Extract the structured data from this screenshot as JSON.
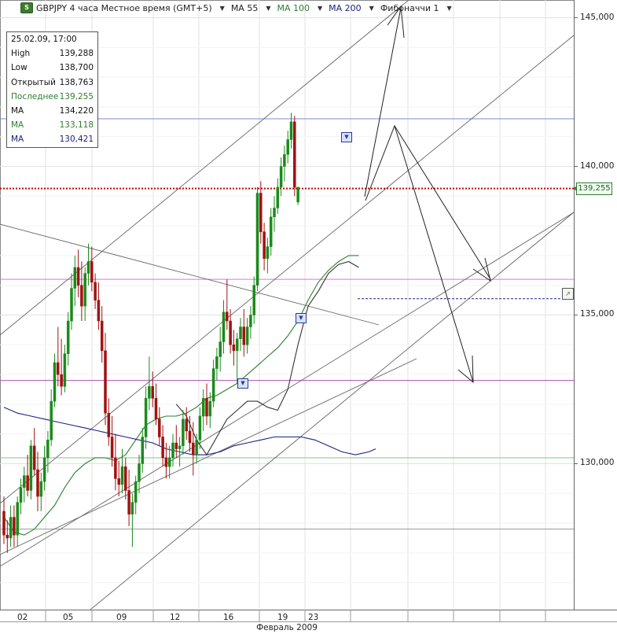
{
  "header": {
    "symbol_title": "GBPJPY 4 часа Местное время (GMT+5)",
    "items": [
      {
        "label": "MA 55",
        "color": "#222222"
      },
      {
        "label": "MA 100",
        "color": "#2e7d32"
      },
      {
        "label": "MA 200",
        "color": "#1a237e"
      },
      {
        "label": "Фибоначчи 1",
        "color": "#222222"
      }
    ],
    "logo_text": "S"
  },
  "info_panel": {
    "datetime": "25.02.09, 17:00",
    "rows": [
      {
        "label": "High",
        "value": "139,288",
        "color": "#111111"
      },
      {
        "label": "Low",
        "value": "138,700",
        "color": "#111111"
      },
      {
        "label": "Открытый",
        "value": "138,763",
        "color": "#111111"
      },
      {
        "label": "Последнее",
        "value": "139,255",
        "color": "#2e7d32"
      },
      {
        "label": "MA",
        "value": "134,220",
        "color": "#111111"
      },
      {
        "label": "MA",
        "value": "133,118",
        "color": "#2e7d32"
      },
      {
        "label": "MA",
        "value": "130,421",
        "color": "#1a237e"
      }
    ]
  },
  "price_tag": "139,255",
  "chart_data": {
    "type": "candlestick",
    "title": "GBPJPY 4 часа",
    "x_axis": {
      "tick_labels": [
        "02",
        "05",
        "09",
        "12",
        "16",
        "19",
        "23"
      ],
      "month_label": "Февраль 2009"
    },
    "y_axis": {
      "tick_labels": [
        "145,000",
        "140,000",
        "135,000",
        "130,000"
      ],
      "ticks": [
        145,
        140,
        135,
        130
      ],
      "ylim": [
        125.3,
        145.6
      ]
    },
    "candles": [
      [
        128.4,
        128.9,
        127.3,
        127.6
      ],
      [
        127.6,
        128.1,
        127.0,
        127.5
      ],
      [
        127.5,
        128.6,
        127.2,
        128.2
      ],
      [
        128.2,
        128.6,
        127.2,
        127.6
      ],
      [
        127.6,
        128.9,
        127.2,
        128.7
      ],
      [
        128.7,
        129.5,
        128.3,
        129.2
      ],
      [
        129.2,
        129.9,
        128.7,
        129.6
      ],
      [
        129.6,
        130.3,
        128.9,
        129.1
      ],
      [
        129.1,
        130.8,
        128.8,
        130.6
      ],
      [
        130.6,
        131.2,
        129.6,
        129.8
      ],
      [
        129.8,
        130.4,
        128.4,
        128.9
      ],
      [
        128.9,
        129.7,
        128.4,
        129.4
      ],
      [
        129.4,
        130.6,
        129.1,
        130.2
      ],
      [
        130.2,
        131.1,
        129.7,
        130.8
      ],
      [
        130.8,
        132.5,
        130.6,
        132.1
      ],
      [
        132.1,
        133.7,
        131.9,
        133.4
      ],
      [
        133.4,
        134.6,
        132.6,
        133.0
      ],
      [
        133.0,
        134.2,
        132.3,
        132.6
      ],
      [
        132.6,
        134.0,
        132.4,
        133.7
      ],
      [
        133.7,
        135.1,
        133.3,
        134.8
      ],
      [
        134.8,
        136.4,
        134.5,
        135.9
      ],
      [
        135.9,
        137.0,
        135.3,
        136.6
      ],
      [
        136.6,
        137.2,
        135.6,
        136.0
      ],
      [
        136.0,
        136.8,
        134.8,
        135.3
      ],
      [
        135.3,
        136.6,
        134.8,
        136.4
      ],
      [
        136.4,
        137.4,
        136.0,
        136.8
      ],
      [
        136.8,
        137.3,
        135.8,
        136.1
      ],
      [
        136.1,
        136.4,
        135.2,
        135.5
      ],
      [
        135.5,
        136.1,
        134.5,
        134.8
      ],
      [
        134.8,
        135.3,
        133.4,
        133.8
      ],
      [
        133.8,
        134.4,
        131.3,
        131.7
      ],
      [
        131.7,
        132.2,
        130.6,
        130.9
      ],
      [
        130.9,
        131.6,
        129.9,
        130.2
      ],
      [
        130.2,
        131.0,
        129.1,
        129.5
      ],
      [
        129.5,
        130.1,
        128.9,
        129.3
      ],
      [
        129.3,
        130.5,
        129.0,
        129.9
      ],
      [
        129.9,
        130.2,
        128.8,
        129.1
      ],
      [
        129.1,
        129.8,
        127.9,
        128.3
      ],
      [
        128.3,
        129.0,
        127.2,
        128.7
      ],
      [
        128.7,
        129.6,
        128.3,
        129.4
      ],
      [
        129.4,
        130.3,
        129.0,
        130.0
      ],
      [
        130.0,
        131.2,
        129.7,
        130.9
      ],
      [
        130.9,
        132.6,
        130.5,
        132.2
      ],
      [
        132.2,
        133.6,
        131.8,
        132.6
      ],
      [
        132.6,
        133.1,
        131.9,
        132.2
      ],
      [
        132.2,
        132.7,
        131.3,
        131.5
      ],
      [
        131.5,
        131.9,
        130.6,
        130.9
      ],
      [
        130.9,
        131.3,
        129.9,
        130.2
      ],
      [
        130.2,
        130.7,
        129.5,
        129.9
      ],
      [
        129.9,
        130.6,
        129.5,
        130.2
      ],
      [
        130.2,
        131.0,
        129.9,
        130.7
      ],
      [
        130.7,
        131.3,
        130.2,
        130.5
      ],
      [
        130.5,
        130.9,
        129.9,
        130.6
      ],
      [
        130.6,
        131.8,
        130.3,
        131.5
      ],
      [
        131.5,
        131.9,
        130.8,
        131.1
      ],
      [
        131.1,
        131.6,
        130.4,
        130.7
      ],
      [
        130.7,
        131.4,
        129.6,
        130.3
      ],
      [
        130.3,
        131.0,
        130.0,
        130.8
      ],
      [
        130.8,
        131.9,
        130.5,
        131.6
      ],
      [
        131.6,
        132.5,
        131.1,
        132.2
      ],
      [
        132.2,
        132.7,
        131.3,
        131.6
      ],
      [
        131.6,
        132.4,
        131.2,
        132.1
      ],
      [
        132.1,
        133.5,
        131.9,
        133.2
      ],
      [
        133.2,
        133.9,
        132.8,
        133.6
      ],
      [
        133.6,
        134.6,
        133.1,
        134.1
      ],
      [
        134.1,
        135.5,
        133.7,
        135.1
      ],
      [
        135.1,
        136.2,
        134.5,
        134.8
      ],
      [
        134.8,
        135.2,
        133.7,
        134.0
      ],
      [
        134.0,
        134.5,
        133.3,
        133.8
      ],
      [
        133.8,
        134.4,
        132.7,
        134.2
      ],
      [
        134.2,
        134.9,
        133.8,
        134.6
      ],
      [
        134.6,
        135.2,
        133.6,
        134.0
      ],
      [
        134.0,
        134.9,
        133.7,
        134.6
      ],
      [
        134.6,
        135.3,
        134.2,
        135.0
      ],
      [
        135.0,
        136.3,
        134.7,
        136.0
      ],
      [
        136.0,
        139.3,
        135.8,
        139.1
      ],
      [
        139.1,
        139.5,
        137.4,
        137.8
      ],
      [
        137.8,
        138.1,
        136.5,
        136.9
      ],
      [
        136.9,
        137.6,
        136.4,
        137.3
      ],
      [
        137.3,
        138.6,
        137.0,
        138.3
      ],
      [
        138.3,
        139.0,
        137.8,
        138.6
      ],
      [
        138.6,
        139.6,
        138.4,
        139.3
      ],
      [
        139.3,
        140.3,
        139.0,
        140.0
      ],
      [
        140.0,
        140.7,
        139.5,
        140.4
      ],
      [
        140.4,
        141.2,
        140.1,
        140.9
      ],
      [
        140.9,
        141.8,
        140.6,
        141.5
      ],
      [
        141.5,
        141.7,
        139.0,
        139.3
      ],
      [
        138.8,
        139.3,
        138.7,
        139.3
      ]
    ],
    "ma55": [
      [
        51,
        132.0
      ],
      [
        54,
        131.6
      ],
      [
        57,
        130.8
      ],
      [
        60,
        130.3
      ],
      [
        63,
        130.9
      ],
      [
        66,
        131.5
      ],
      [
        69,
        131.8
      ],
      [
        72,
        132.1
      ],
      [
        75,
        132.1
      ],
      [
        78,
        131.9
      ],
      [
        81,
        131.8
      ],
      [
        84,
        132.5
      ],
      [
        87,
        134.0
      ],
      [
        90,
        135.3
      ],
      [
        93,
        135.8
      ],
      [
        96,
        136.4
      ],
      [
        99,
        136.7
      ],
      [
        102,
        136.8
      ],
      [
        105,
        136.6
      ]
    ],
    "ma100": [
      [
        0,
        128.2
      ],
      [
        3,
        127.7
      ],
      [
        6,
        127.6
      ],
      [
        9,
        127.8
      ],
      [
        12,
        128.2
      ],
      [
        15,
        128.6
      ],
      [
        18,
        129.2
      ],
      [
        21,
        129.7
      ],
      [
        24,
        130.0
      ],
      [
        27,
        130.2
      ],
      [
        30,
        130.2
      ],
      [
        33,
        130.1
      ],
      [
        36,
        130.3
      ],
      [
        39,
        130.8
      ],
      [
        42,
        131.3
      ],
      [
        45,
        131.5
      ],
      [
        48,
        131.6
      ],
      [
        51,
        131.6
      ],
      [
        54,
        131.7
      ],
      [
        57,
        131.9
      ],
      [
        60,
        132.2
      ],
      [
        63,
        132.3
      ],
      [
        66,
        132.5
      ],
      [
        69,
        132.7
      ],
      [
        72,
        133.0
      ],
      [
        75,
        133.3
      ],
      [
        78,
        133.6
      ],
      [
        81,
        133.9
      ],
      [
        84,
        134.3
      ],
      [
        87,
        134.8
      ],
      [
        90,
        135.5
      ],
      [
        93,
        136.1
      ],
      [
        96,
        136.5
      ],
      [
        99,
        136.8
      ],
      [
        102,
        137.0
      ],
      [
        105,
        137.0
      ]
    ],
    "ma200": [
      [
        0,
        131.9
      ],
      [
        4,
        131.7
      ],
      [
        8,
        131.6
      ],
      [
        12,
        131.5
      ],
      [
        16,
        131.4
      ],
      [
        20,
        131.3
      ],
      [
        24,
        131.2
      ],
      [
        28,
        131.1
      ],
      [
        32,
        131.0
      ],
      [
        36,
        130.9
      ],
      [
        40,
        130.8
      ],
      [
        44,
        130.7
      ],
      [
        48,
        130.5
      ],
      [
        52,
        130.4
      ],
      [
        56,
        130.3
      ],
      [
        60,
        130.3
      ],
      [
        64,
        130.4
      ],
      [
        68,
        130.6
      ],
      [
        72,
        130.7
      ],
      [
        76,
        130.8
      ],
      [
        80,
        130.9
      ],
      [
        84,
        130.9
      ],
      [
        88,
        130.9
      ],
      [
        92,
        130.8
      ],
      [
        96,
        130.6
      ],
      [
        100,
        130.4
      ],
      [
        104,
        130.3
      ],
      [
        108,
        130.4
      ],
      [
        110,
        130.5
      ]
    ],
    "horizontal_lines": [
      {
        "y": 141.6,
        "color": "#7b8bd8",
        "style": "solid"
      },
      {
        "y": 139.255,
        "color": "#cc0000",
        "style": "dotted"
      },
      {
        "y": 136.2,
        "color": "#e070e0",
        "style": "solid"
      },
      {
        "y": 132.8,
        "color": "#b050b0",
        "style": "solid"
      },
      {
        "y": 130.2,
        "color": "#88c088",
        "style": "solid"
      },
      {
        "y": 127.8,
        "color": "#999999",
        "style": "solid"
      }
    ],
    "fib_marker_line": {
      "y": 135.55,
      "color": "#1a237e",
      "style": "dashed"
    },
    "last_price": 139.255
  }
}
